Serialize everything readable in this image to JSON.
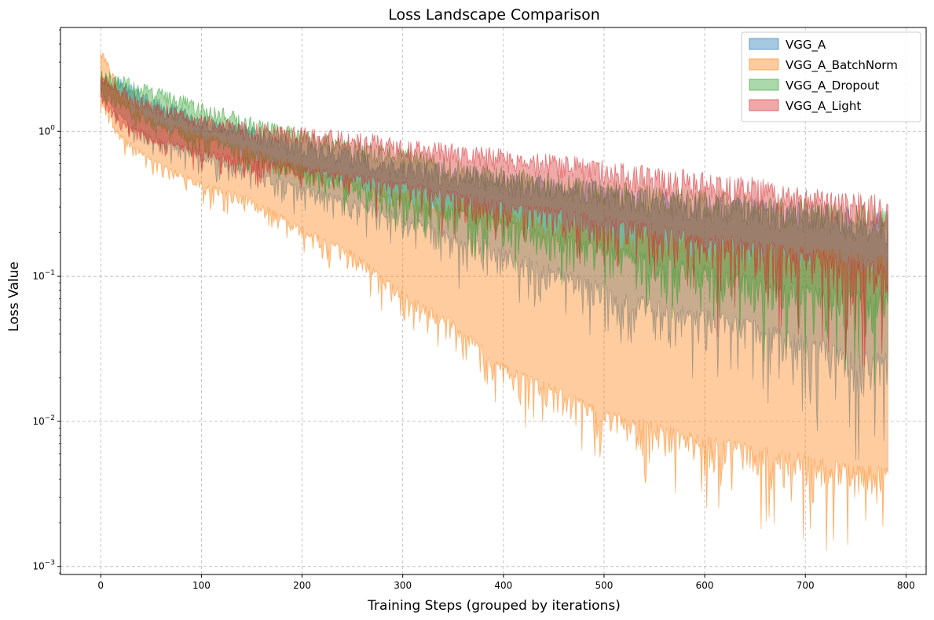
{
  "chart_data": {
    "type": "area",
    "title": "Loss Landscape Comparison",
    "xlabel": "Training Steps (grouped by iterations)",
    "ylabel": "Loss Value",
    "yscale": "log",
    "xlim": [
      -40,
      820
    ],
    "ylim": [
      0.00088,
      5.2
    ],
    "grid": true,
    "legend_position": "top-right",
    "x_ticks": [
      0,
      100,
      200,
      300,
      400,
      500,
      600,
      700,
      800
    ],
    "y_ticks": [
      {
        "value": 0.001,
        "base": "10",
        "exp": "−3"
      },
      {
        "value": 0.01,
        "base": "10",
        "exp": "−2"
      },
      {
        "value": 0.1,
        "base": "10",
        "exp": "−1"
      },
      {
        "value": 1,
        "base": "10",
        "exp": "0"
      }
    ],
    "series": [
      {
        "name": "VGG_A",
        "color": "#1f77b4",
        "x": [
          0,
          20,
          50,
          100,
          150,
          200,
          250,
          300,
          350,
          400,
          450,
          500,
          550,
          600,
          650,
          700,
          750,
          782
        ],
        "upper": [
          2.3,
          2.0,
          1.5,
          1.1,
          0.9,
          0.72,
          0.62,
          0.5,
          0.48,
          0.42,
          0.38,
          0.35,
          0.3,
          0.28,
          0.26,
          0.24,
          0.22,
          0.2
        ],
        "lower": [
          1.9,
          1.3,
          0.95,
          0.72,
          0.55,
          0.42,
          0.35,
          0.28,
          0.2,
          0.16,
          0.12,
          0.09,
          0.07,
          0.06,
          0.05,
          0.04,
          0.03,
          0.03
        ]
      },
      {
        "name": "VGG_A_BatchNorm",
        "color": "#ff7f0e",
        "x": [
          0,
          20,
          50,
          100,
          150,
          200,
          250,
          300,
          350,
          400,
          450,
          500,
          550,
          600,
          650,
          700,
          750,
          782
        ],
        "upper": [
          3.5,
          1.6,
          1.1,
          0.85,
          0.65,
          0.5,
          0.4,
          0.33,
          0.28,
          0.24,
          0.2,
          0.18,
          0.16,
          0.14,
          0.13,
          0.12,
          0.11,
          0.1
        ],
        "lower": [
          1.7,
          0.95,
          0.65,
          0.45,
          0.35,
          0.22,
          0.15,
          0.08,
          0.05,
          0.025,
          0.018,
          0.012,
          0.01,
          0.008,
          0.007,
          0.006,
          0.005,
          0.005
        ]
      },
      {
        "name": "VGG_A_Dropout",
        "color": "#2ca02c",
        "x": [
          0,
          20,
          50,
          100,
          150,
          200,
          250,
          300,
          350,
          400,
          450,
          500,
          550,
          600,
          650,
          700,
          750,
          782
        ],
        "upper": [
          2.3,
          2.1,
          1.8,
          1.35,
          1.05,
          0.85,
          0.72,
          0.62,
          0.52,
          0.45,
          0.4,
          0.36,
          0.32,
          0.3,
          0.28,
          0.25,
          0.24,
          0.22
        ],
        "lower": [
          2.0,
          1.6,
          1.25,
          0.95,
          0.75,
          0.58,
          0.45,
          0.36,
          0.3,
          0.25,
          0.2,
          0.17,
          0.14,
          0.12,
          0.1,
          0.09,
          0.08,
          0.08
        ]
      },
      {
        "name": "VGG_A_Light",
        "color": "#d62728",
        "x": [
          0,
          20,
          50,
          100,
          150,
          200,
          250,
          300,
          350,
          400,
          450,
          500,
          550,
          600,
          650,
          700,
          750,
          782
        ],
        "upper": [
          2.2,
          1.8,
          1.4,
          1.1,
          0.95,
          0.88,
          0.82,
          0.72,
          0.65,
          0.6,
          0.55,
          0.48,
          0.43,
          0.4,
          0.36,
          0.3,
          0.28,
          0.26
        ],
        "lower": [
          1.8,
          1.2,
          0.95,
          0.75,
          0.65,
          0.58,
          0.52,
          0.45,
          0.4,
          0.33,
          0.3,
          0.27,
          0.23,
          0.2,
          0.18,
          0.16,
          0.14,
          0.12
        ]
      }
    ]
  }
}
